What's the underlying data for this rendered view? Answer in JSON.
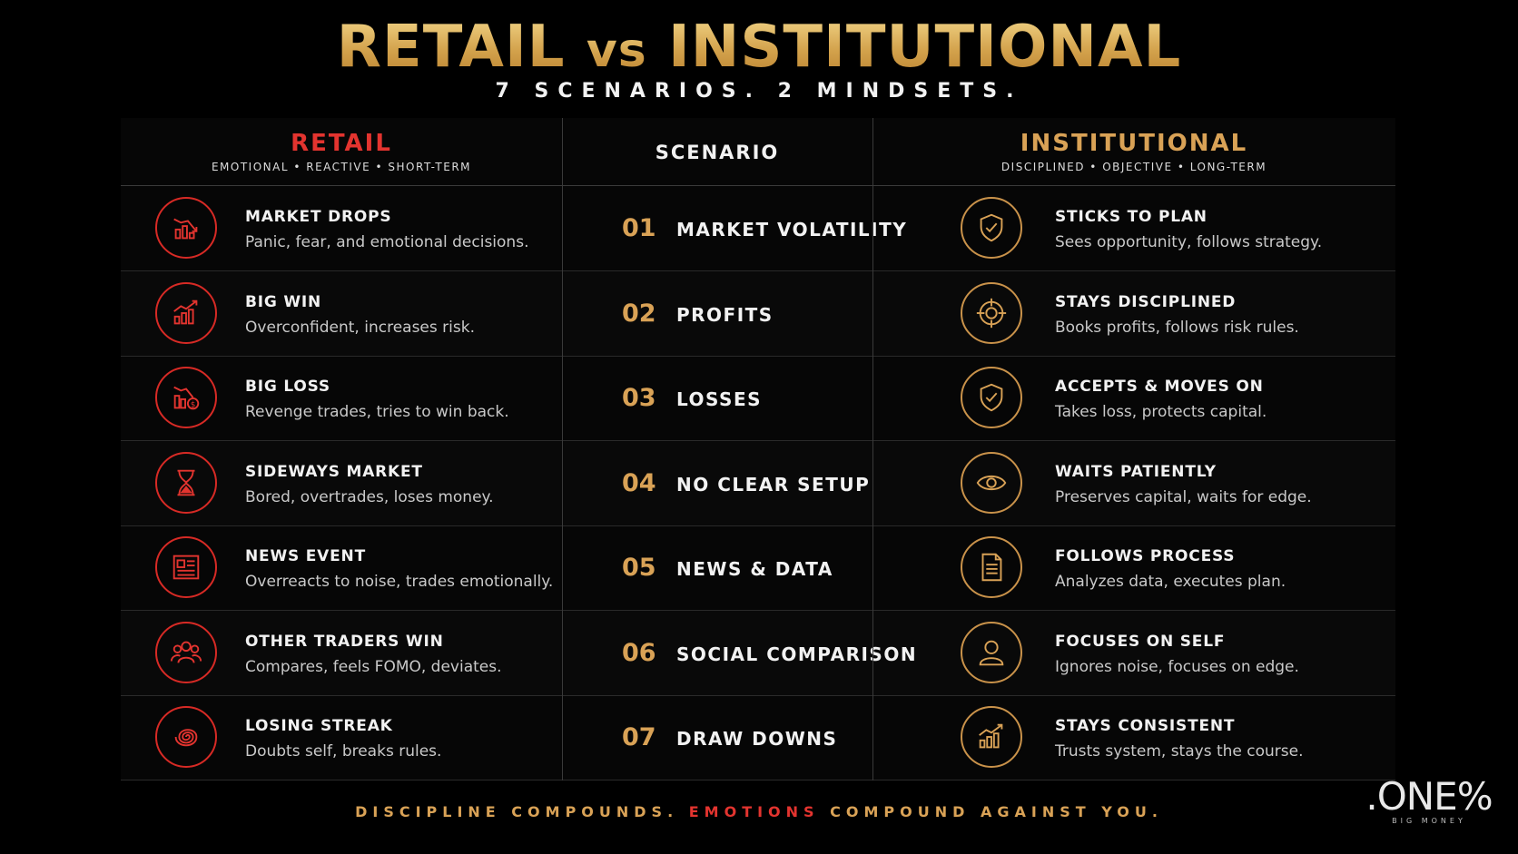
{
  "title": {
    "left": "RETAIL",
    "mid": "vs",
    "right": "INSTITUTIONAL"
  },
  "subtitle": "7 SCENARIOS. 2 MINDSETS.",
  "headers": {
    "retail": {
      "title": "RETAIL",
      "sub": "EMOTIONAL • REACTIVE • SHORT-TERM"
    },
    "scenario": {
      "title": "SCENARIO"
    },
    "institutional": {
      "title": "INSTITUTIONAL",
      "sub": "DISCIPLINED • OBJECTIVE • LONG-TERM"
    }
  },
  "rows": [
    {
      "num": "01",
      "scenario": "MARKET VOLATILITY",
      "retail": {
        "title": "MARKET DROPS",
        "desc": "Panic, fear, and emotional decisions.",
        "icon": "chart-down-icon"
      },
      "inst": {
        "title": "STICKS TO PLAN",
        "desc": "Sees opportunity, follows strategy.",
        "icon": "shield-check-icon"
      }
    },
    {
      "num": "02",
      "scenario": "PROFITS",
      "retail": {
        "title": "BIG WIN",
        "desc": "Overconfident, increases risk.",
        "icon": "chart-up-icon"
      },
      "inst": {
        "title": "STAYS DISCIPLINED",
        "desc": "Books profits, follows risk rules.",
        "icon": "crosshair-icon"
      }
    },
    {
      "num": "03",
      "scenario": "LOSSES",
      "retail": {
        "title": "BIG LOSS",
        "desc": "Revenge trades, tries to win back.",
        "icon": "chart-loss-dollar-icon"
      },
      "inst": {
        "title": "ACCEPTS & MOVES ON",
        "desc": "Takes loss, protects capital.",
        "icon": "shield-check-icon"
      }
    },
    {
      "num": "04",
      "scenario": "NO CLEAR SETUP",
      "retail": {
        "title": "SIDEWAYS MARKET",
        "desc": "Bored, overtrades, loses money.",
        "icon": "hourglass-icon"
      },
      "inst": {
        "title": "WAITS PATIENTLY",
        "desc": "Preserves capital, waits for edge.",
        "icon": "eye-icon"
      }
    },
    {
      "num": "05",
      "scenario": "NEWS & DATA",
      "retail": {
        "title": "NEWS EVENT",
        "desc": "Overreacts to noise, trades emotionally.",
        "icon": "newspaper-icon"
      },
      "inst": {
        "title": "FOLLOWS PROCESS",
        "desc": "Analyzes data, executes plan.",
        "icon": "document-icon"
      }
    },
    {
      "num": "06",
      "scenario": "SOCIAL COMPARISON",
      "retail": {
        "title": "OTHER TRADERS WIN",
        "desc": "Compares, feels FOMO, deviates.",
        "icon": "group-icon"
      },
      "inst": {
        "title": "FOCUSES ON SELF",
        "desc": "Ignores noise, focuses on edge.",
        "icon": "person-icon"
      }
    },
    {
      "num": "07",
      "scenario": "DRAW DOWNS",
      "retail": {
        "title": "LOSING STREAK",
        "desc": "Doubts self, breaks rules.",
        "icon": "spiral-icon"
      },
      "inst": {
        "title": "STAYS CONSISTENT",
        "desc": "Trusts system, stays the course.",
        "icon": "chart-up-icon"
      }
    }
  ],
  "tagline": {
    "part1": "DISCIPLINE COMPOUNDS.",
    "part2": "EMOTIONS",
    "part3": "COMPOUND AGAINST YOU."
  },
  "logo": {
    "main": ".ONE%",
    "sub": "BIG MONEY"
  },
  "colors": {
    "retail_red": "#e3342f",
    "gold": "#d9a256",
    "background": "#000000"
  }
}
